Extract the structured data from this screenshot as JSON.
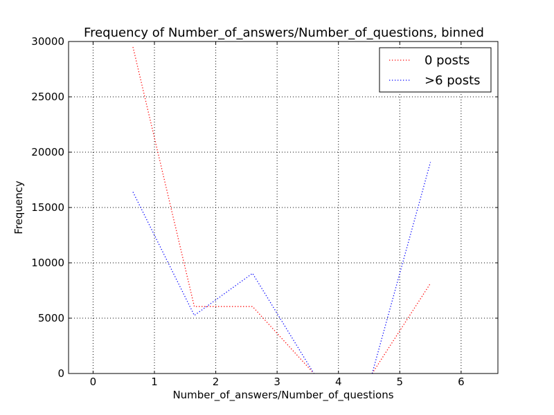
{
  "chart_data": {
    "type": "line",
    "title": "Frequency of Number_of_answers/Number_of_questions, binned",
    "xlabel": "Number_of_answers/Number_of_questions",
    "ylabel": "Frequency",
    "xlim": [
      -0.4,
      6.6
    ],
    "ylim": [
      0,
      30000
    ],
    "xticks": [
      0,
      1,
      2,
      3,
      4,
      5,
      6
    ],
    "yticks": [
      0,
      5000,
      10000,
      15000,
      20000,
      25000,
      30000
    ],
    "grid": true,
    "legend_position": "top-right",
    "series": [
      {
        "name": "0 posts",
        "color": "#ff0000",
        "segments": [
          [
            [
              0.65,
              29500
            ],
            [
              1.65,
              6050
            ],
            [
              2.6,
              6050
            ],
            [
              3.6,
              0
            ]
          ],
          [
            [
              4.55,
              0
            ],
            [
              5.5,
              8150
            ]
          ]
        ]
      },
      {
        "name": ">6 posts",
        "color": "#0000ff",
        "segments": [
          [
            [
              0.65,
              16400
            ],
            [
              1.65,
              5250
            ],
            [
              2.6,
              9050
            ],
            [
              3.6,
              0
            ]
          ],
          [
            [
              4.55,
              0
            ],
            [
              5.5,
              19100
            ]
          ]
        ]
      }
    ]
  }
}
